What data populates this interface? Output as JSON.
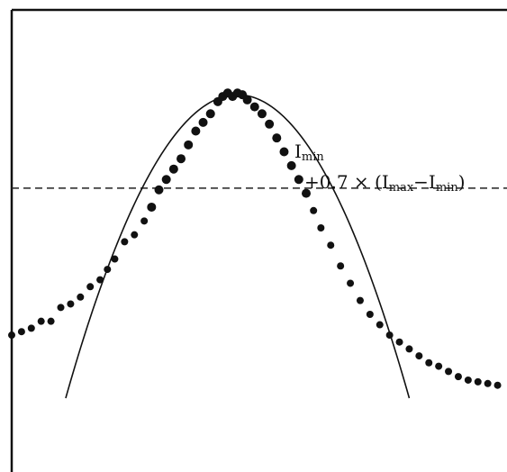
{
  "chart_data": {
    "type": "scatter",
    "title": "",
    "xlabel": "",
    "ylabel": "",
    "xlim": [
      0,
      100
    ],
    "ylim": [
      0,
      100
    ],
    "grid": false,
    "legend": "none",
    "series": [
      {
        "kind": "measured_points",
        "x": [
          0,
          2,
          4,
          6,
          8,
          10,
          12,
          14,
          16,
          18,
          19.5,
          21,
          23,
          25,
          27,
          28.5,
          30,
          31.5,
          33,
          34.5,
          36,
          37.5,
          39,
          40.5,
          42,
          43,
          44,
          45,
          46,
          47,
          48,
          49.5,
          51,
          52.5,
          54,
          55.5,
          57,
          58.5,
          60,
          61.5,
          63,
          65,
          67,
          69,
          71,
          73,
          75,
          77,
          79,
          81,
          83,
          85,
          87,
          89,
          91,
          93,
          95,
          97,
          99
        ],
        "y": [
          19,
          20,
          21,
          23,
          23,
          27,
          28,
          30,
          33,
          35,
          38,
          41,
          46,
          48,
          52,
          56,
          61,
          64,
          67,
          70,
          74,
          78,
          80.5,
          83,
          86.5,
          88,
          89,
          88,
          89,
          88.5,
          87,
          85,
          83,
          80,
          76,
          72,
          68,
          64,
          60,
          55,
          50,
          45,
          39,
          34,
          29,
          25,
          22,
          19,
          17,
          15,
          13,
          11,
          10,
          8.5,
          7,
          6,
          5.5,
          5,
          4.5
        ]
      },
      {
        "kind": "fitted_curve",
        "equation": "y = 88.5 - 0.0716*(x - 46)^2",
        "x_range": [
          11,
          81
        ]
      }
    ],
    "threshold_line": {
      "y": 61.5,
      "style": "dashed"
    },
    "annotations": {
      "line1_main": "I",
      "line1_sub": "min",
      "line2_prefix": "+0.7 × (I",
      "line2_sub1": "max",
      "line2_mid": "−I",
      "line2_sub2": "min",
      "line2_suffix": ")"
    },
    "colors": {
      "points": "#111111",
      "curve": "#111111",
      "axes": "#111111",
      "background": "#ffffff"
    }
  }
}
